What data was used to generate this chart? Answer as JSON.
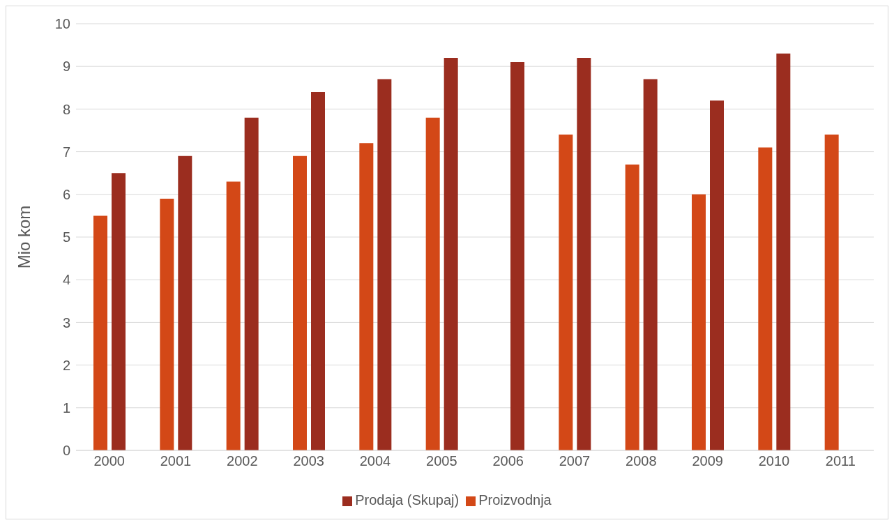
{
  "chart_data": {
    "type": "bar",
    "ylabel": "Mio kom",
    "categories": [
      "2000",
      "2001",
      "2002",
      "2003",
      "2004",
      "2005",
      "2006",
      "2007",
      "2008",
      "2009",
      "2010",
      "2011"
    ],
    "series": [
      {
        "name": "Proizvodnja",
        "color": "#d34817",
        "values": [
          5.5,
          5.9,
          6.3,
          6.9,
          7.2,
          7.8,
          null,
          7.4,
          6.7,
          6.0,
          7.1,
          7.4
        ]
      },
      {
        "name": "Prodaja (Skupaj)",
        "color": "#9b2d1f",
        "values": [
          6.5,
          6.9,
          7.8,
          8.4,
          8.7,
          9.2,
          9.1,
          9.2,
          8.7,
          8.2,
          9.3,
          null
        ]
      }
    ],
    "ylim": [
      0,
      10
    ],
    "yticks": [
      0,
      1,
      2,
      3,
      4,
      5,
      6,
      7,
      8,
      9,
      10
    ],
    "grid": "y",
    "legend": "bottom"
  }
}
